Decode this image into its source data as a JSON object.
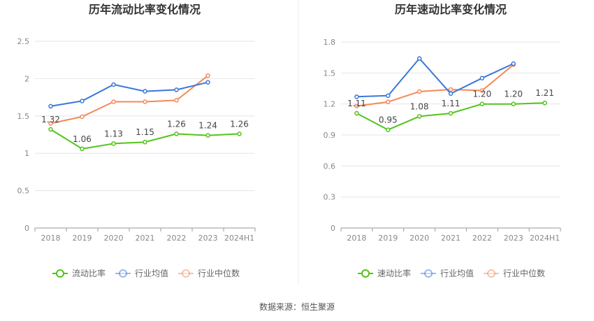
{
  "source_label": "数据来源：恒生聚源",
  "chart_data": [
    {
      "type": "line",
      "title": "历年流动比率变化情况",
      "xlabel": "",
      "ylabel": "",
      "categories": [
        "2018",
        "2019",
        "2020",
        "2021",
        "2022",
        "2023",
        "2024H1"
      ],
      "ylim": [
        0,
        2.5
      ],
      "yticks": [
        "0",
        "0.5",
        "1",
        "1.5",
        "2",
        "2.5"
      ],
      "grid": true,
      "legend_position": "bottom",
      "series": [
        {
          "name": "流动比率",
          "color": "#52c41a",
          "values": [
            1.32,
            1.06,
            1.13,
            1.15,
            1.26,
            1.24,
            1.26
          ],
          "labels": [
            "1.32",
            "1.06",
            "1.13",
            "1.15",
            "1.26",
            "1.24",
            "1.26"
          ]
        },
        {
          "name": "行业均值",
          "color": "#3a78d8",
          "values": [
            1.63,
            1.7,
            1.92,
            1.83,
            1.85,
            1.95,
            null
          ]
        },
        {
          "name": "行业中位数",
          "color": "#f5885a",
          "values": [
            1.4,
            1.49,
            1.69,
            1.69,
            1.71,
            2.04,
            null
          ]
        }
      ]
    },
    {
      "type": "line",
      "title": "历年速动比率变化情况",
      "xlabel": "",
      "ylabel": "",
      "categories": [
        "2018",
        "2019",
        "2020",
        "2021",
        "2022",
        "2023",
        "2024H1"
      ],
      "ylim": [
        0,
        1.8
      ],
      "yticks": [
        "0",
        "0.3",
        "0.6",
        "0.9",
        "1.2",
        "1.5",
        "1.8"
      ],
      "grid": true,
      "legend_position": "bottom",
      "series": [
        {
          "name": "速动比率",
          "color": "#52c41a",
          "values": [
            1.11,
            0.95,
            1.08,
            1.11,
            1.2,
            1.2,
            1.21
          ],
          "labels": [
            "1.11",
            "0.95",
            "1.08",
            "1.11",
            "1.20",
            "1.20",
            "1.21"
          ]
        },
        {
          "name": "行业均值",
          "color": "#3a78d8",
          "values": [
            1.27,
            1.28,
            1.64,
            1.3,
            1.45,
            1.59,
            null
          ]
        },
        {
          "name": "行业中位数",
          "color": "#f5885a",
          "values": [
            1.18,
            1.22,
            1.32,
            1.34,
            1.33,
            1.58,
            null
          ]
        }
      ]
    }
  ]
}
